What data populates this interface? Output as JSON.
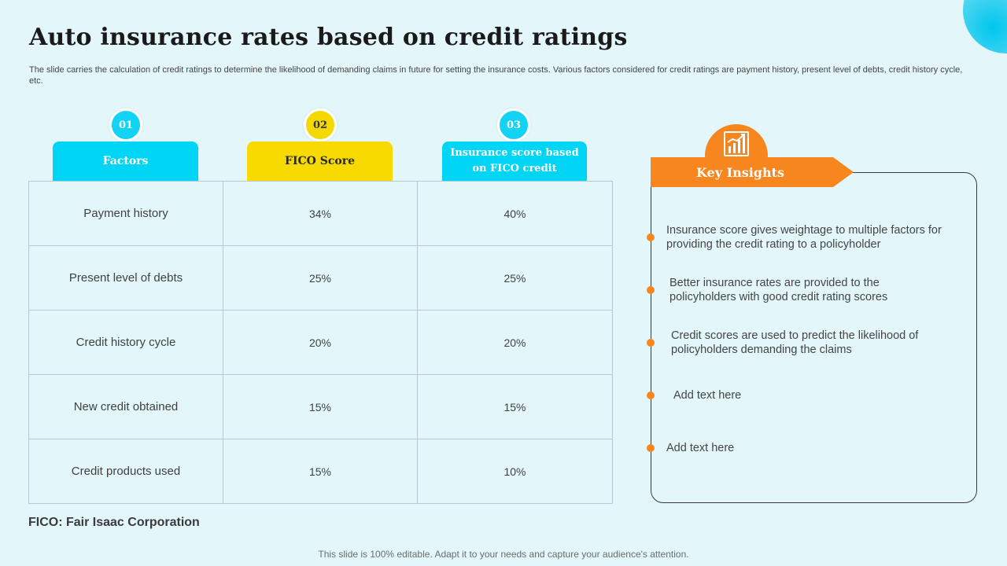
{
  "header": {
    "title": "Auto insurance rates based on credit ratings",
    "subtitle": "The slide carries the calculation of credit ratings to determine the likelihood of demanding claims in future for setting the insurance costs. Various factors considered for credit ratings are payment history, present level of debts, credit history cycle, etc."
  },
  "columns": [
    {
      "number": "01",
      "label": "Factors",
      "color": "#00d5f5"
    },
    {
      "number": "02",
      "label": "FICO Score",
      "color": "#f8da00"
    },
    {
      "number": "03",
      "label": "Insurance score based on FICO credit",
      "color": "#00d5f5"
    }
  ],
  "rows": [
    {
      "factor": "Payment history",
      "fico": "34%",
      "insurance": "40%"
    },
    {
      "factor": "Present level of debts",
      "fico": "25%",
      "insurance": "25%"
    },
    {
      "factor": "Credit history cycle",
      "fico": "20%",
      "insurance": "20%"
    },
    {
      "factor": "New credit obtained",
      "fico": "15%",
      "insurance": "15%"
    },
    {
      "factor": "Credit products used",
      "fico": "15%",
      "insurance": "10%"
    }
  ],
  "footnote": "FICO: Fair Isaac Corporation",
  "insights": {
    "title": "Key Insights",
    "icon": "chart-growth-icon",
    "accent": "#f7861e",
    "items": [
      "Insurance score gives weightage to multiple factors for providing the credit rating to a policyholder",
      "Better insurance rates are provided to the policyholders with good credit rating scores",
      "Credit scores are used to predict the likelihood of policyholders demanding the claims",
      "Add text here",
      "Add text here"
    ]
  },
  "footer": "This slide is 100% editable. Adapt it to your needs and capture your audience's attention."
}
